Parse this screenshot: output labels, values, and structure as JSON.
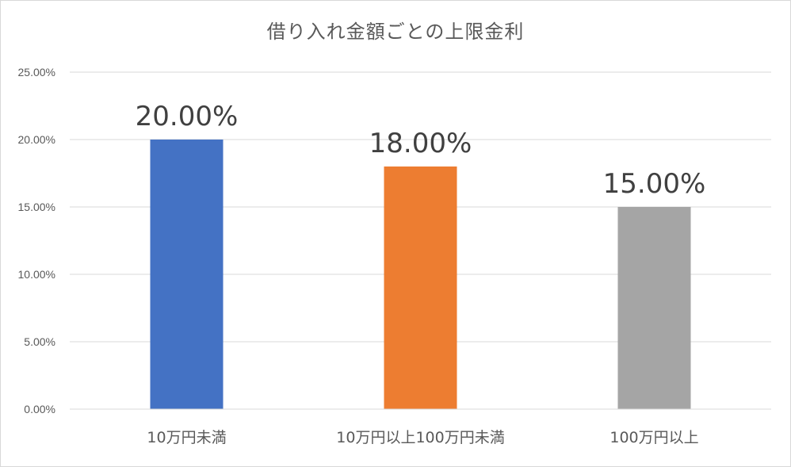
{
  "chart_data": {
    "type": "bar",
    "title": "借り入れ金額ごとの上限金利",
    "xlabel": "",
    "ylabel": "",
    "categories": [
      "10万円未満",
      "10万円以上100万円未満",
      "100万円以上"
    ],
    "values": [
      20.0,
      18.0,
      15.0
    ],
    "data_labels": [
      "20.00%",
      "18.00%",
      "15.00%"
    ],
    "bar_colors": [
      "#4472c4",
      "#ed7d31",
      "#a5a5a5"
    ],
    "ylim": [
      0,
      25
    ],
    "yticks": [
      0,
      5,
      10,
      15,
      20,
      25
    ],
    "ytick_labels": [
      "0.00%",
      "5.00%",
      "10.00%",
      "15.00%",
      "20.00%",
      "25.00%"
    ],
    "grid": true,
    "legend": "none"
  }
}
